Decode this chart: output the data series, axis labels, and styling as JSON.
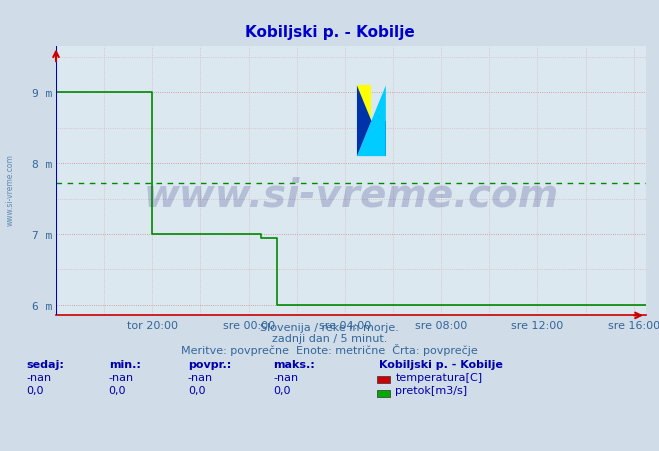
{
  "title": "Kobiljski p. - Kobilje",
  "title_color": "#0000cc",
  "bg_color": "#d0dce8",
  "plot_bg_color": "#dce8f0",
  "grid_color_major": "#cc8888",
  "grid_color_minor": "#ddaaaa",
  "xlabel_color": "#336699",
  "ylabel_color": "#336699",
  "axis_color_left": "#0000bb",
  "axis_color_bottom": "#cc0000",
  "x_tick_labels": [
    "tor 20:00",
    "sre 00:00",
    "sre 04:00",
    "sre 08:00",
    "sre 12:00",
    "sre 16:00"
  ],
  "x_tick_positions": [
    4,
    8,
    12,
    16,
    20,
    24
  ],
  "ylim": [
    5.85,
    9.65
  ],
  "xlim": [
    0,
    24.5
  ],
  "y_ticks": [
    6,
    7,
    8,
    9
  ],
  "y_tick_labels": [
    "6 m",
    "7 m",
    "8 m",
    "9 m"
  ],
  "avg_line_y": 7.72,
  "avg_line_color": "#008800",
  "green_line_color": "#008800",
  "green_line_x": [
    0.0,
    0.0,
    4.0,
    4.0,
    8.5,
    8.5,
    9.2,
    9.2,
    24.5
  ],
  "green_line_y": [
    9.55,
    9.0,
    9.0,
    7.0,
    7.0,
    6.95,
    6.95,
    6.0,
    6.0
  ],
  "subtitle1": "Slovenija / reke in morje.",
  "subtitle2": "zadnji dan / 5 minut.",
  "subtitle3": "Meritve: povprečne  Enote: metrične  Črta: povprečje",
  "subtitle_color": "#336699",
  "legend_title": "Kobiljski p. - Kobilje",
  "legend_color1": "#cc0000",
  "legend_label1": "temperatura[C]",
  "legend_color2": "#00aa00",
  "legend_label2": "pretok[m3/s]",
  "stats_label_color": "#0000aa",
  "watermark_text": "www.si-vreme.com",
  "watermark_color": "#000066",
  "watermark_alpha": 0.18,
  "side_text_color": "#336699",
  "side_text_alpha": 0.7
}
